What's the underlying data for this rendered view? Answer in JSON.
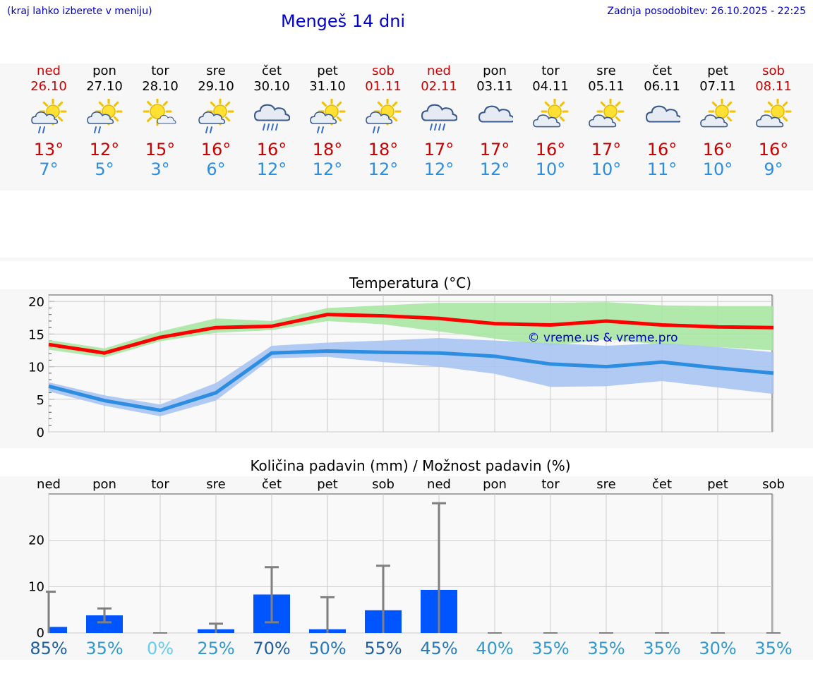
{
  "header": {
    "left_note": "(kraj lahko izberete v meniju)",
    "title": "Mengeš 14 dni",
    "updated": "Zadnja posodobitev: 26.10.2025 - 22:25"
  },
  "colors": {
    "max_line": "#ff0000",
    "max_band": "#a8e6a3",
    "min_line": "#2d8de0",
    "min_band": "#a9c4f2",
    "bar": "#0055ff",
    "error_bar": "#808080",
    "header_text": "#0000cc"
  },
  "days": [
    {
      "name": "ned",
      "date": "26.10",
      "weekend": true,
      "icon": "sun-cloud-rain-icon",
      "tmax": "13°",
      "tmin": "7°"
    },
    {
      "name": "pon",
      "date": "27.10",
      "weekend": false,
      "icon": "sun-cloud-rain-icon",
      "tmax": "12°",
      "tmin": "5°"
    },
    {
      "name": "tor",
      "date": "28.10",
      "weekend": false,
      "icon": "sun-small-cloud-icon",
      "tmax": "15°",
      "tmin": "3°"
    },
    {
      "name": "sre",
      "date": "29.10",
      "weekend": false,
      "icon": "sun-cloud-rain-icon",
      "tmax": "16°",
      "tmin": "6°"
    },
    {
      "name": "čet",
      "date": "30.10",
      "weekend": false,
      "icon": "heavy-rain-icon",
      "tmax": "16°",
      "tmin": "12°"
    },
    {
      "name": "pet",
      "date": "31.10",
      "weekend": false,
      "icon": "sun-cloud-rain-icon",
      "tmax": "18°",
      "tmin": "12°"
    },
    {
      "name": "sob",
      "date": "01.11",
      "weekend": true,
      "icon": "sun-cloud-rain-icon",
      "tmax": "18°",
      "tmin": "12°"
    },
    {
      "name": "ned",
      "date": "02.11",
      "weekend": true,
      "icon": "heavy-rain-icon",
      "tmax": "17°",
      "tmin": "12°"
    },
    {
      "name": "pon",
      "date": "03.11",
      "weekend": false,
      "icon": "cloud-icon",
      "tmax": "17°",
      "tmin": "12°"
    },
    {
      "name": "tor",
      "date": "04.11",
      "weekend": false,
      "icon": "sun-cloud-icon",
      "tmax": "16°",
      "tmin": "10°"
    },
    {
      "name": "sre",
      "date": "05.11",
      "weekend": false,
      "icon": "sun-cloud-icon",
      "tmax": "17°",
      "tmin": "10°"
    },
    {
      "name": "čet",
      "date": "06.11",
      "weekend": false,
      "icon": "cloud-icon",
      "tmax": "16°",
      "tmin": "11°"
    },
    {
      "name": "pet",
      "date": "07.11",
      "weekend": false,
      "icon": "sun-cloud-icon",
      "tmax": "16°",
      "tmin": "10°"
    },
    {
      "name": "sob",
      "date": "08.11",
      "weekend": true,
      "icon": "sun-cloud-icon",
      "tmax": "16°",
      "tmin": "9°"
    }
  ],
  "chart_data": [
    {
      "type": "line",
      "title": "Temperatura (°C)",
      "xlabel": "",
      "ylabel": "",
      "ylim": [
        0,
        21
      ],
      "yticks": [
        0,
        5,
        10,
        15,
        20
      ],
      "grid": true,
      "x_index": [
        0,
        1,
        2,
        3,
        4,
        5,
        6,
        7,
        8,
        9,
        10,
        11,
        12,
        13
      ],
      "watermark": "© vreme.us & vreme.pro",
      "series": [
        {
          "values": [
            13.4,
            12.1,
            14.5,
            16.0,
            16.2,
            18.0,
            17.8,
            17.4,
            16.6,
            16.4,
            17.0,
            16.4,
            16.1,
            16.0
          ],
          "band_low": [
            12.6,
            11.4,
            13.9,
            15.2,
            15.6,
            17.0,
            16.5,
            15.4,
            14.3,
            13.2,
            14.2,
            13.4,
            13.0,
            12.5
          ],
          "band_high": [
            14.1,
            12.8,
            15.4,
            17.4,
            17.0,
            19.0,
            19.4,
            19.8,
            19.8,
            19.8,
            19.9,
            19.4,
            19.3,
            19.3
          ]
        },
        {
          "values": [
            7.0,
            4.8,
            3.3,
            6.0,
            12.1,
            12.4,
            12.2,
            12.1,
            11.6,
            10.4,
            10.0,
            10.7,
            9.8,
            9.0
          ],
          "band_low": [
            6.2,
            4.0,
            2.4,
            4.8,
            11.3,
            11.5,
            10.7,
            10.0,
            8.9,
            6.9,
            7.0,
            7.8,
            6.8,
            5.8
          ],
          "band_high": [
            7.6,
            5.6,
            4.2,
            7.5,
            13.2,
            13.7,
            14.0,
            14.4,
            14.0,
            13.6,
            13.2,
            13.6,
            13.0,
            12.2
          ]
        }
      ]
    },
    {
      "type": "bar",
      "title": "Količina padavin (mm) / Možnost padavin (%)",
      "xlabel": "",
      "ylabel": "",
      "ylim": [
        0,
        30
      ],
      "yticks": [
        0,
        10,
        20
      ],
      "grid": true,
      "categories": [
        "ned",
        "pon",
        "tor",
        "sre",
        "čet",
        "pet",
        "sob",
        "ned",
        "pon",
        "tor",
        "sre",
        "čet",
        "pet",
        "sob"
      ],
      "values": [
        1.3,
        3.8,
        0,
        0.8,
        8.3,
        0.8,
        4.9,
        9.3,
        0,
        0,
        0,
        0,
        0,
        0
      ],
      "err_low": [
        0,
        2.3,
        0,
        0,
        2.3,
        0,
        0,
        0,
        0,
        0,
        0,
        0,
        0,
        0
      ],
      "err_high": [
        8.9,
        5.3,
        0,
        2.0,
        14.2,
        7.7,
        14.5,
        28.0,
        0,
        0,
        0,
        0,
        0,
        0
      ],
      "probability": [
        "85%",
        "35%",
        "0%",
        "25%",
        "70%",
        "50%",
        "55%",
        "45%",
        "40%",
        "35%",
        "35%",
        "35%",
        "30%",
        "35%"
      ],
      "probability_colors": [
        "#1f5fa0",
        "#3399cc",
        "#66ccee",
        "#3399cc",
        "#1f5fa0",
        "#2a78b8",
        "#1f5fa0",
        "#2a78b8",
        "#3399cc",
        "#3399cc",
        "#3399cc",
        "#3399cc",
        "#3399cc",
        "#3399cc"
      ]
    }
  ]
}
